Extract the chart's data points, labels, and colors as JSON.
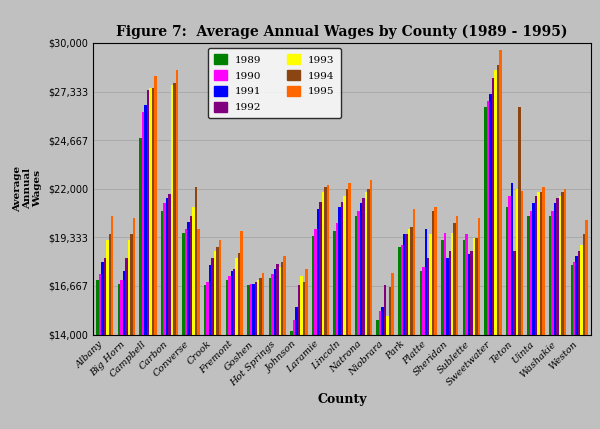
{
  "title": "Figure 7:  Average Annual Wages by County (1989 - 1995)",
  "xlabel": "County",
  "ylabel": "Average\nAnnual\nWages",
  "background_color": "#c0c0c0",
  "plot_bg_color": "#c0c0c0",
  "years": [
    "1989",
    "1990",
    "1991",
    "1992",
    "1993",
    "1994",
    "1995"
  ],
  "year_colors": [
    "#008000",
    "#ff00ff",
    "#0000ff",
    "#800080",
    "#ffff00",
    "#8B4513",
    "#ff6600"
  ],
  "counties": [
    "Albany",
    "Big Horn",
    "Campbell",
    "Carbon",
    "Converse",
    "Crook",
    "Fremont",
    "Goshen",
    "Hot Springs",
    "Johnson",
    "Laramie",
    "Lincoln",
    "Natrona",
    "Niobrara",
    "Park",
    "Platte",
    "Sheridan",
    "Sublette",
    "Sweetwater",
    "Teton",
    "Uinta",
    "Washakie",
    "Weston"
  ],
  "data": {
    "Albany": [
      17000,
      17300,
      18000,
      18200,
      19200,
      19500,
      20500
    ],
    "Big Horn": [
      16800,
      17000,
      17500,
      18200,
      19200,
      19500,
      20400
    ],
    "Campbell": [
      24800,
      26200,
      26600,
      27400,
      27500,
      27500,
      28200
    ],
    "Carbon": [
      20800,
      21200,
      21500,
      21700,
      27700,
      27800,
      28500
    ],
    "Converse": [
      19600,
      19800,
      20200,
      20500,
      21000,
      22100,
      19800
    ],
    "Crook": [
      16700,
      16900,
      17800,
      18200,
      18600,
      18800,
      19200
    ],
    "Fremont": [
      17000,
      17200,
      17500,
      17600,
      18200,
      18500,
      19700
    ],
    "Goshen": [
      16700,
      16800,
      16800,
      16900,
      17000,
      17100,
      17400
    ],
    "Hot Springs": [
      17100,
      17300,
      17600,
      17900,
      17700,
      18000,
      18300
    ],
    "Johnson": [
      14200,
      14800,
      15500,
      16700,
      17200,
      16900,
      17600
    ],
    "Laramie": [
      19400,
      19800,
      20900,
      21300,
      21800,
      22100,
      22200
    ],
    "Lincoln": [
      19700,
      20100,
      21000,
      21300,
      21600,
      22000,
      22300
    ],
    "Natrona": [
      20500,
      20800,
      21200,
      21500,
      21800,
      22000,
      22500
    ],
    "Niobrara": [
      14800,
      15300,
      15500,
      16700,
      15000,
      16600,
      17400
    ],
    "Park": [
      18800,
      18900,
      19500,
      19500,
      19800,
      19900,
      20900
    ],
    "Platte": [
      17500,
      17700,
      19800,
      18200,
      19500,
      20800,
      21000
    ],
    "Sheridan": [
      19200,
      19600,
      18200,
      18600,
      19600,
      20100,
      20500
    ],
    "Sublette": [
      19200,
      19500,
      18400,
      18600,
      19300,
      19300,
      20400
    ],
    "Sweetwater": [
      26500,
      26800,
      27200,
      28100,
      28500,
      28800,
      29600
    ],
    "Teton": [
      21000,
      21600,
      22300,
      18600,
      22000,
      26500,
      21900
    ],
    "Uinta": [
      20500,
      20800,
      21200,
      21600,
      21800,
      21800,
      22100
    ],
    "Washakie": [
      20500,
      20800,
      21200,
      21500,
      21600,
      21800,
      22000
    ],
    "Weston": [
      17800,
      18000,
      18300,
      18600,
      18900,
      19500,
      20300
    ]
  },
  "ylim": [
    14000,
    30000
  ],
  "yticks": [
    14000,
    16667,
    19333,
    22000,
    24667,
    27333,
    30000
  ],
  "ytick_labels": [
    "$14,000",
    "$16,667",
    "$19,333",
    "$22,000",
    "$24,667",
    "$27,333",
    "$30,000"
  ]
}
